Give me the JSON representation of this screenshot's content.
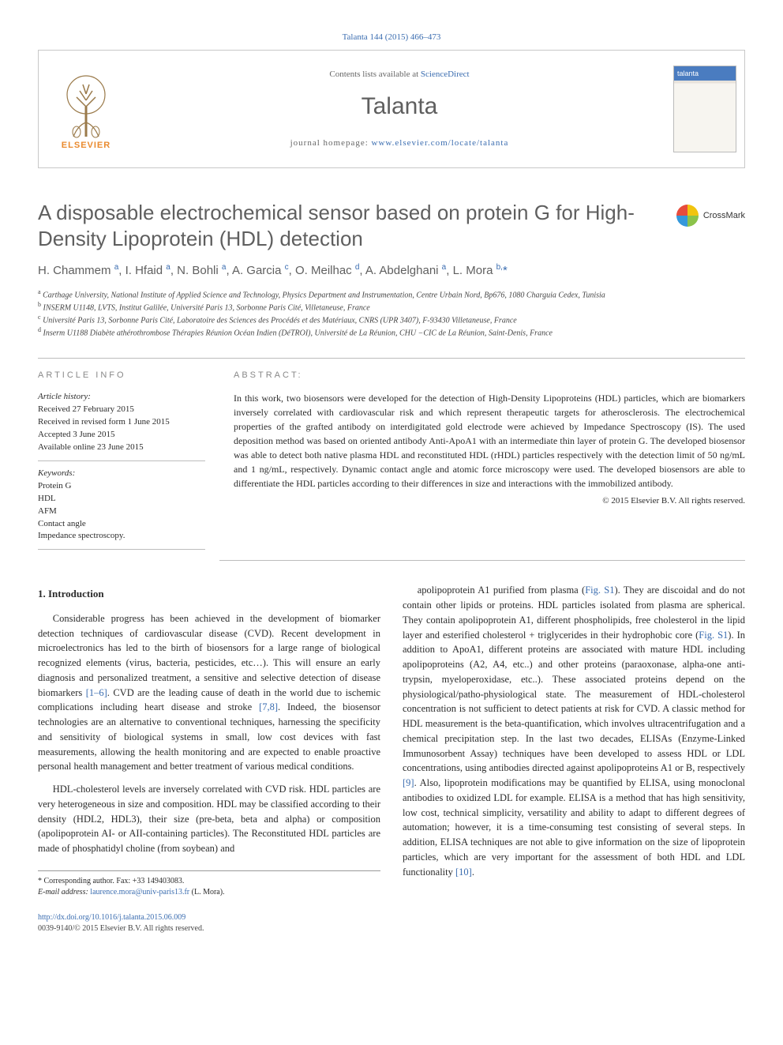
{
  "citation": "Talanta 144 (2015) 466–473",
  "header": {
    "contents_prefix": "Contents lists available at ",
    "contents_link": "ScienceDirect",
    "journal": "Talanta",
    "homepage_label": "journal homepage: ",
    "homepage_url": "www.elsevier.com/locate/talanta",
    "publisher": "ELSEVIER",
    "cover_label": "talanta"
  },
  "crossmark": "CrossMark",
  "title": "A disposable electrochemical sensor based on protein G for High-Density Lipoprotein (HDL) detection",
  "authors_html": "H. Chammem <sup>a</sup>, I. Hfaid <sup>a</sup>, N. Bohli <sup>a</sup>, A. Garcia <sup>c</sup>, O. Meilhac <sup>d</sup>, A. Abdelghani <sup>a</sup>, L. Mora <sup>b,</sup><span class='star'>*</span>",
  "affiliations": [
    "a Carthage University, National Institute of Applied Science and Technology, Physics Department and Instrumentation, Centre Urbain Nord, Bp676, 1080 Charguia Cedex, Tunisia",
    "b INSERM U1148, LVTS, Institut Galilée, Université Paris 13, Sorbonne Paris Cité, Villetaneuse, France",
    "c Université Paris 13, Sorbonne Paris Cité, Laboratoire des Sciences des Procédés et des Matériaux, CNRS (UPR 3407), F-93430 Villetaneuse, France",
    "d Inserm U1188 Diabète athérothrombose Thérapies Réunion Océan Indien (DéTROI), Université de La Réunion, CHU −CIC de La Réunion, Saint-Denis, France"
  ],
  "article_info_heading": "article info",
  "history": {
    "label": "Article history:",
    "received": "Received 27 February 2015",
    "revised": "Received in revised form 1 June 2015",
    "accepted": "Accepted 3 June 2015",
    "online": "Available online 23 June 2015"
  },
  "keywords": {
    "label": "Keywords:",
    "items": [
      "Protein G",
      "HDL",
      "AFM",
      "Contact angle",
      "Impedance spectroscopy."
    ]
  },
  "abstract_heading": "abstract:",
  "abstract": "In this work, two biosensors were developed for the detection of High-Density Lipoproteins (HDL) particles, which are biomarkers inversely correlated with cardiovascular risk and which represent therapeutic targets for atherosclerosis. The electrochemical properties of the grafted antibody on interdigitated gold electrode were achieved by Impedance Spectroscopy (IS). The used deposition method was based on oriented antibody Anti-ApoA1 with an intermediate thin layer of protein G. The developed biosensor was able to detect both native plasma HDL and reconstituted HDL (rHDL) particles respectively with the detection limit of 50 ng/mL and 1 ng/mL, respectively. Dynamic contact angle and atomic force microscopy were used. The developed biosensors are able to differentiate the HDL particles according to their differences in size and interactions with the immobilized antibody.",
  "copyright": "© 2015 Elsevier B.V. All rights reserved.",
  "intro_heading": "1. Introduction",
  "para1": "Considerable progress has been achieved in the development of biomarker detection techniques of cardiovascular disease (CVD). Recent development in microelectronics has led to the birth of biosensors for a large range of biological recognized elements (virus, bacteria, pesticides, etc…). This will ensure an early diagnosis and personalized treatment, a sensitive and selective detection of disease biomarkers ",
  "cite1": "[1–6]",
  "para1b": ". CVD are the leading cause of death in the world due to ischemic complications including heart disease and stroke ",
  "cite2": "[7,8]",
  "para1c": ". Indeed, the biosensor technologies are an alternative to conventional techniques, harnessing the specificity and sensitivity of biological systems in small, low cost devices with fast measurements, allowing the health monitoring and are expected to enable proactive personal health management and better treatment of various medical conditions.",
  "para2": "HDL-cholesterol levels are inversely correlated with CVD risk. HDL particles are very heterogeneous in size and composition. HDL may be classified according to their density (HDL2, HDL3), their size (pre-beta, beta and alpha) or composition (apolipoprotein AI- or AII-containing particles). The Reconstituted HDL particles are made of phosphatidyl choline (from soybean) and",
  "para3a": "apolipoprotein A1 purified from plasma (",
  "figS1a": "Fig. S1",
  "para3b": "). They are discoidal and do not contain other lipids or proteins. HDL particles isolated from plasma are spherical. They contain apolipoprotein A1, different phospholipids, free cholesterol in the lipid layer and esterified cholesterol + triglycerides in their hydrophobic core (",
  "figS1b": "Fig. S1",
  "para3c": "). In addition to ApoA1, different proteins are associated with mature HDL including apolipoproteins (A2, A4, etc..) and other proteins (paraoxonase, alpha-one anti-trypsin, myeloperoxidase, etc..). These associated proteins depend on the physiological/patho-physiological state. The measurement of HDL-cholesterol concentration is not sufficient to detect patients at risk for CVD. A classic method for HDL measurement is the beta-quantification, which involves ultracentrifugation and a chemical precipitation step. In the last two decades, ELISAs (Enzyme-Linked Immunosorbent Assay) techniques have been developed to assess HDL or LDL concentrations, using antibodies directed against apolipoproteins A1 or B, respectively ",
  "cite3": "[9]",
  "para3d": ". Also, lipoprotein modifications may be quantified by ELISA, using monoclonal antibodies to oxidized LDL for example. ELISA is a method that has high sensitivity, low cost, technical simplicity, versatility and ability to adapt to different degrees of automation; however, it is a time-consuming test consisting of several steps. In addition, ELISA techniques are not able to give information on the size of lipoprotein particles, which are very important for the assessment of both HDL and LDL functionality ",
  "cite4": "[10]",
  "para3e": ".",
  "footnote": {
    "star": "* Corresponding author. Fax: +33 149403083.",
    "email_label": "E-mail address: ",
    "email": "laurence.mora@univ-paris13.fr",
    "email_who": " (L. Mora)."
  },
  "footer": {
    "doi": "http://dx.doi.org/10.1016/j.talanta.2015.06.009",
    "issn": "0039-9140/© 2015 Elsevier B.V. All rights reserved."
  },
  "colors": {
    "link": "#3b6db0",
    "heading_gray": "#5f5f5f",
    "rule": "#bdbdbd",
    "elsevier_orange": "#ea8a2e"
  }
}
